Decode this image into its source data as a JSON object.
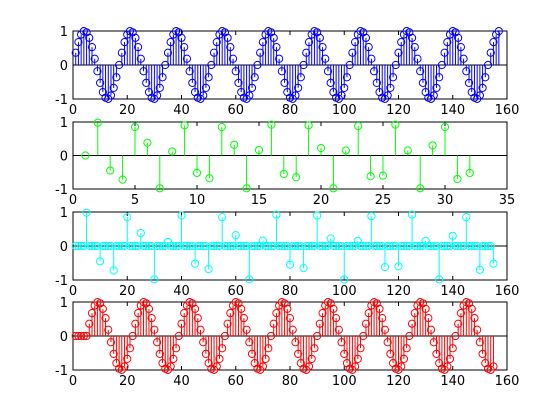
{
  "chart_data": [
    {
      "type": "stem",
      "color": "#0000ff",
      "xlim": [
        0,
        160
      ],
      "ylim": [
        -1,
        1
      ],
      "xticks": [
        "0",
        "20",
        "40",
        "60",
        "80",
        "100",
        "120",
        "140",
        "160"
      ],
      "yticks": [
        "-1",
        "0",
        "1"
      ],
      "n_samples": 157,
      "signal": "sin(2*pi*n/17)"
    },
    {
      "type": "stem",
      "color": "#00ff00",
      "xlim": [
        0,
        35
      ],
      "ylim": [
        -1,
        1
      ],
      "xticks": [
        "0",
        "5",
        "10",
        "15",
        "20",
        "25",
        "30",
        "35"
      ],
      "yticks": [
        "-1",
        "0",
        "1"
      ],
      "x": [
        1,
        2,
        3,
        4,
        5,
        6,
        7,
        8,
        9,
        10,
        11,
        12,
        13,
        14,
        15,
        16,
        17,
        18,
        19,
        20,
        21,
        22,
        23,
        24,
        25,
        26,
        27,
        28,
        29,
        30,
        31,
        32
      ],
      "values": [
        0.0,
        0.98,
        -0.45,
        -0.72,
        0.85,
        0.38,
        -0.98,
        0.12,
        0.9,
        -0.52,
        -0.68,
        0.85,
        0.32,
        -0.98,
        0.16,
        0.92,
        -0.55,
        -0.65,
        0.9,
        0.22,
        -0.98,
        0.15,
        0.88,
        -0.62,
        -0.6,
        0.92,
        0.15,
        -0.98,
        0.3,
        0.85,
        -0.7,
        -0.52
      ]
    },
    {
      "type": "stem",
      "color": "#00ffff",
      "xlim": [
        0,
        160
      ],
      "ylim": [
        -1,
        1
      ],
      "xticks": [
        "0",
        "20",
        "40",
        "60",
        "80",
        "100",
        "120",
        "140",
        "160"
      ],
      "yticks": [
        "-1",
        "0",
        "1"
      ],
      "n_samples": 155,
      "nonzero": [
        [
          5,
          0.98
        ],
        [
          10,
          -0.45
        ],
        [
          15,
          -0.72
        ],
        [
          20,
          0.85
        ],
        [
          25,
          0.38
        ],
        [
          30,
          -0.98
        ],
        [
          35,
          0.12
        ],
        [
          40,
          0.9
        ],
        [
          45,
          -0.52
        ],
        [
          50,
          -0.68
        ],
        [
          55,
          0.85
        ],
        [
          60,
          0.32
        ],
        [
          65,
          -0.98
        ],
        [
          70,
          0.16
        ],
        [
          75,
          0.92
        ],
        [
          80,
          -0.55
        ],
        [
          85,
          -0.65
        ],
        [
          90,
          0.9
        ],
        [
          95,
          0.22
        ],
        [
          100,
          -0.98
        ],
        [
          105,
          0.15
        ],
        [
          110,
          0.88
        ],
        [
          115,
          -0.62
        ],
        [
          120,
          -0.6
        ],
        [
          125,
          0.92
        ],
        [
          130,
          0.15
        ],
        [
          135,
          -0.98
        ],
        [
          140,
          0.3
        ],
        [
          145,
          0.85
        ],
        [
          150,
          -0.7
        ],
        [
          155,
          -0.52
        ]
      ]
    },
    {
      "type": "stem",
      "color": "#ff0000",
      "xlim": [
        0,
        160
      ],
      "ylim": [
        -1,
        1
      ],
      "xticks": [
        "0",
        "20",
        "40",
        "60",
        "80",
        "100",
        "120",
        "140",
        "160"
      ],
      "yticks": [
        "-1",
        "0",
        "1"
      ],
      "n_samples": 155,
      "leading_zeros": 5,
      "signal": "sin(2*pi*(n-5)/17)"
    }
  ]
}
